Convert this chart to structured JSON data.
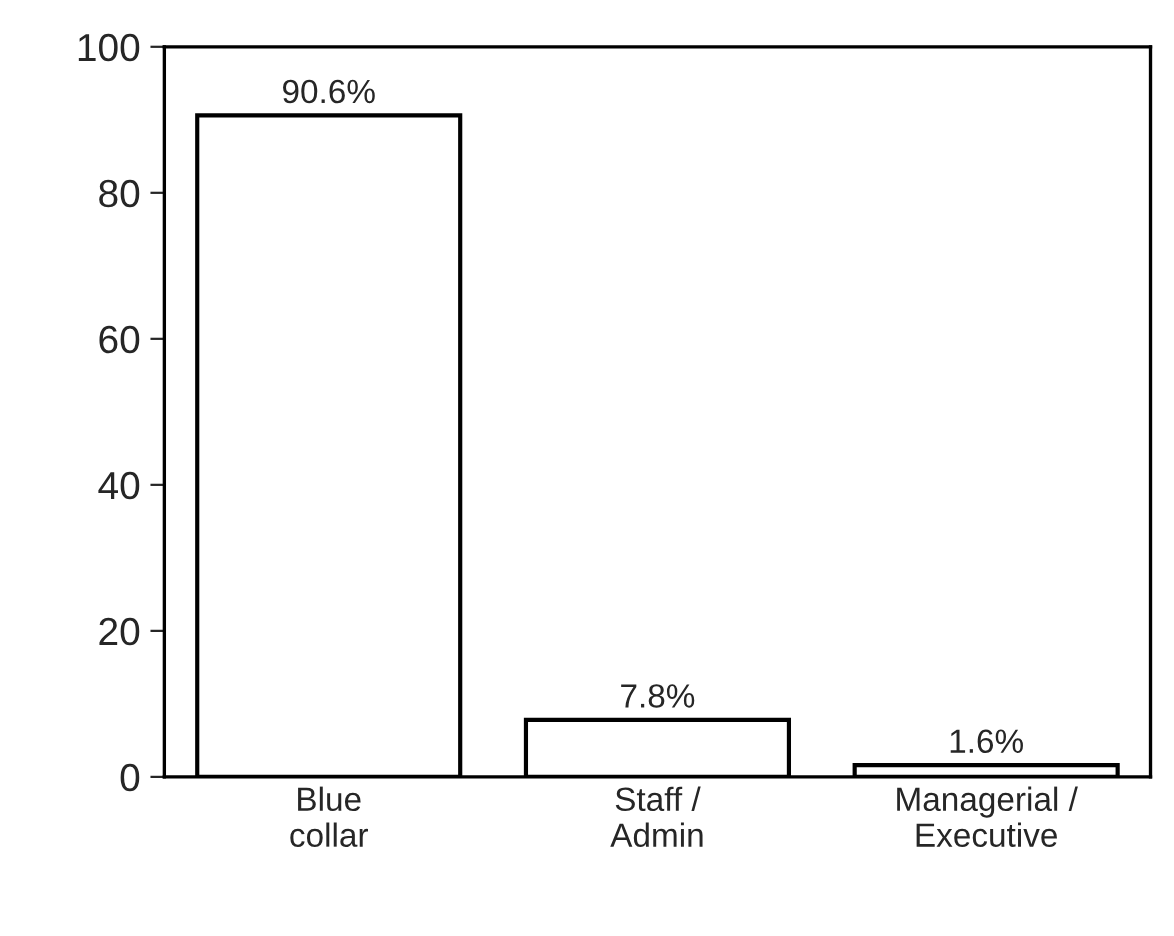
{
  "chart_data": {
    "type": "bar",
    "categories": [
      "Blue\ncollar",
      "Staff /\nAdmin",
      "Managerial /\nExecutive"
    ],
    "values": [
      90.6,
      7.8,
      1.6
    ],
    "value_labels": [
      "90.6%",
      "7.8%",
      "1.6%"
    ],
    "color": "#ffffff",
    "ylim": [
      0,
      100
    ],
    "yticks": [
      0,
      20,
      40,
      60,
      80,
      100
    ],
    "grid": false
  }
}
